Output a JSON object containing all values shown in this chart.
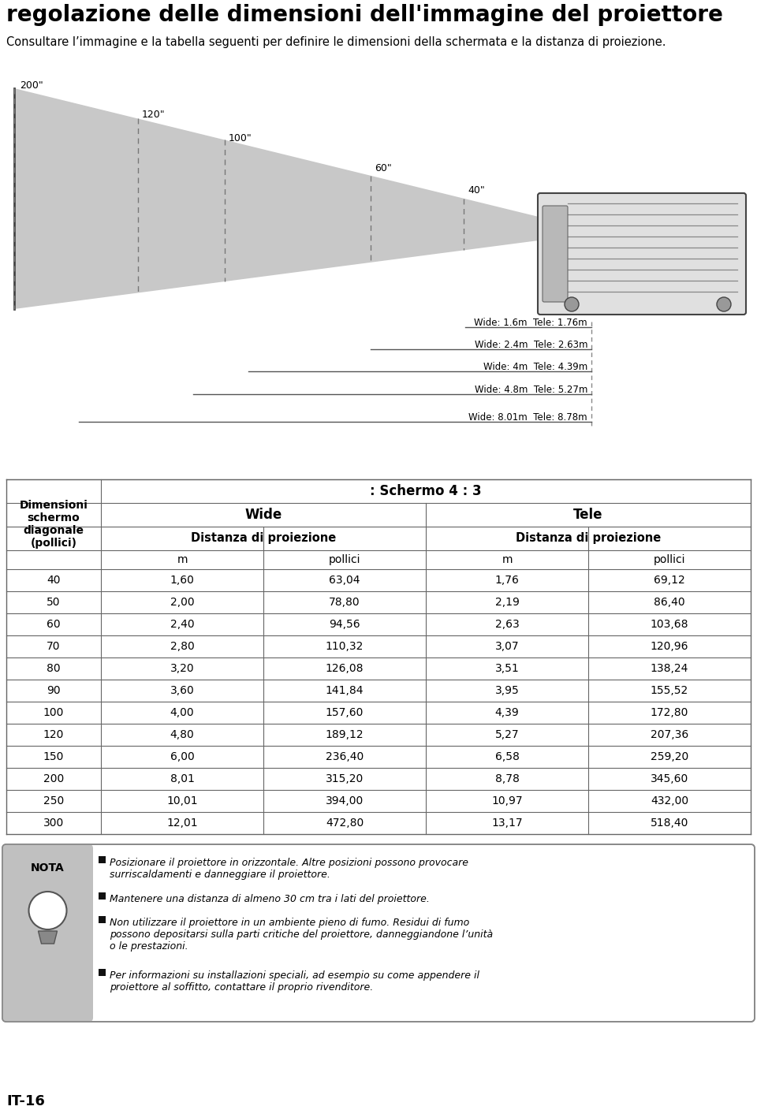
{
  "title": "regolazione delle dimensioni dell'immagine del proiettore",
  "subtitle": "Consultare l’immagine e la tabella seguenti per definire le dimensioni della schermata e la distanza di proiezione.",
  "screen_labels": [
    "200\"",
    "120\"",
    "100\"",
    "60\"",
    "40\""
  ],
  "distance_labels": [
    "Wide: 1.6m  Tele: 1.76m",
    "Wide: 2.4m  Tele: 2.63m",
    "Wide: 4m  Tele: 4.39m",
    "Wide: 4.8m  Tele: 5.27m",
    "Wide: 8.01m  Tele: 8.78m"
  ],
  "table_header_main": ": Schermo 4 : 3",
  "table_col1_header": "Dimensioni\nschermo\ndiagonale\n(pollici)",
  "table_wide_header": "Wide",
  "table_tele_header": "Tele",
  "table_dist_header": "Distanza di proiezione",
  "table_sub_m": "m",
  "table_sub_pollici": "pollici",
  "table_data": [
    [
      40,
      "1,60",
      "63,04",
      "1,76",
      "69,12"
    ],
    [
      50,
      "2,00",
      "78,80",
      "2,19",
      "86,40"
    ],
    [
      60,
      "2,40",
      "94,56",
      "2,63",
      "103,68"
    ],
    [
      70,
      "2,80",
      "110,32",
      "3,07",
      "120,96"
    ],
    [
      80,
      "3,20",
      "126,08",
      "3,51",
      "138,24"
    ],
    [
      90,
      "3,60",
      "141,84",
      "3,95",
      "155,52"
    ],
    [
      100,
      "4,00",
      "157,60",
      "4,39",
      "172,80"
    ],
    [
      120,
      "4,80",
      "189,12",
      "5,27",
      "207,36"
    ],
    [
      150,
      "6,00",
      "236,40",
      "6,58",
      "259,20"
    ],
    [
      200,
      "8,01",
      "315,20",
      "8,78",
      "345,60"
    ],
    [
      250,
      "10,01",
      "394,00",
      "10,97",
      "432,00"
    ],
    [
      300,
      "12,01",
      "472,80",
      "13,17",
      "518,40"
    ]
  ],
  "nota_title": "NOTA",
  "nota_texts": [
    "Posizionare il proiettore in orizzontale. Altre posizioni possono provocare\nsurriscaldamenti e danneggiare il proiettore.",
    "Mantenere una distanza di almeno 30 cm tra i lati del proiettore.",
    "Non utilizzare il proiettore in un ambiente pieno di fumo. Residui di fumo\npossono depositarsi sulla parti critiche del proiettore, danneggiandone l’unità\no le prestazioni.",
    "Per informazioni su installazioni speciali, ad esempio su come appendere il\nproiettore al soffitto, contattare il proprio rivenditore."
  ],
  "footer_text": "IT-16",
  "bg_color": "#ffffff",
  "gray_fill": "#c8c8c8",
  "nota_gray": "#c0c0c0",
  "table_line_color": "#666666"
}
